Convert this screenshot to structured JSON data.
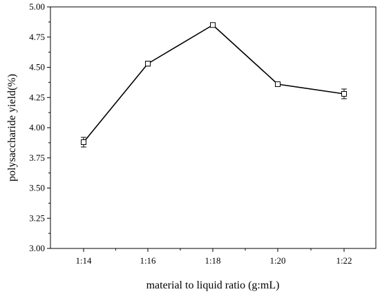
{
  "chart_data": {
    "type": "line",
    "xlabel": "material to liquid ratio (g:mL)",
    "ylabel": "polysaccharide yield(%)",
    "categories": [
      "1:14",
      "1:16",
      "1:18",
      "1:20",
      "1:22"
    ],
    "series": [
      {
        "values": [
          3.88,
          4.53,
          4.85,
          4.36,
          4.28
        ],
        "error": [
          0.04,
          0.02,
          0.01,
          0.02,
          0.04
        ]
      }
    ],
    "ylim": [
      3.0,
      5.0
    ],
    "yticks": [
      "3.00",
      "3.25",
      "3.50",
      "3.75",
      "4.00",
      "4.25",
      "4.50",
      "4.75",
      "5.00"
    ],
    "marker": "open-square",
    "grid": false,
    "line_color": "#000000"
  }
}
